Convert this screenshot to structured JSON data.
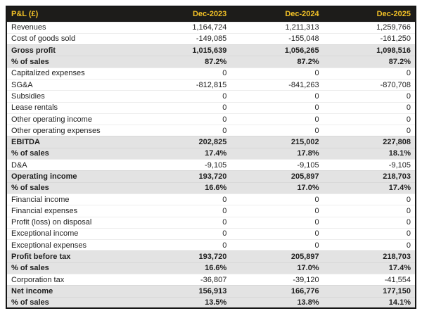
{
  "colors": {
    "page_bg": "#ffffff",
    "header_bg": "#1d1c1a",
    "header_text": "#f2c127",
    "emphasis_row_bg": "#e3e3e3",
    "table_border": "#161616",
    "body_text": "#1e1e1e"
  },
  "chart_data": {
    "type": "table",
    "title": "P&L (£)",
    "header": {
      "label": "P&L (£)",
      "columns": [
        "Dec-2023",
        "Dec-2024",
        "Dec-2025"
      ]
    },
    "rows": [
      {
        "label": "Revenues",
        "values": [
          "1,164,724",
          "1,211,313",
          "1,259,766"
        ],
        "emphasis": false
      },
      {
        "label": "Cost of goods sold",
        "values": [
          "-149,085",
          "-155,048",
          "-161,250"
        ],
        "emphasis": false
      },
      {
        "label": "Gross profit",
        "values": [
          "1,015,639",
          "1,056,265",
          "1,098,516"
        ],
        "emphasis": true
      },
      {
        "label": "% of sales",
        "values": [
          "87.2%",
          "87.2%",
          "87.2%"
        ],
        "emphasis": true
      },
      {
        "label": "Capitalized expenses",
        "values": [
          "0",
          "0",
          "0"
        ],
        "emphasis": false
      },
      {
        "label": "SG&A",
        "values": [
          "-812,815",
          "-841,263",
          "-870,708"
        ],
        "emphasis": false
      },
      {
        "label": "Subsidies",
        "values": [
          "0",
          "0",
          "0"
        ],
        "emphasis": false
      },
      {
        "label": "Lease rentals",
        "values": [
          "0",
          "0",
          "0"
        ],
        "emphasis": false
      },
      {
        "label": "Other operating income",
        "values": [
          "0",
          "0",
          "0"
        ],
        "emphasis": false
      },
      {
        "label": "Other operating expenses",
        "values": [
          "0",
          "0",
          "0"
        ],
        "emphasis": false
      },
      {
        "label": "EBITDA",
        "values": [
          "202,825",
          "215,002",
          "227,808"
        ],
        "emphasis": true
      },
      {
        "label": "% of sales",
        "values": [
          "17.4%",
          "17.8%",
          "18.1%"
        ],
        "emphasis": true
      },
      {
        "label": "D&A",
        "values": [
          "-9,105",
          "-9,105",
          "-9,105"
        ],
        "emphasis": false
      },
      {
        "label": "Operating income",
        "values": [
          "193,720",
          "205,897",
          "218,703"
        ],
        "emphasis": true
      },
      {
        "label": "% of sales",
        "values": [
          "16.6%",
          "17.0%",
          "17.4%"
        ],
        "emphasis": true
      },
      {
        "label": "Financial income",
        "values": [
          "0",
          "0",
          "0"
        ],
        "emphasis": false
      },
      {
        "label": "Financial expenses",
        "values": [
          "0",
          "0",
          "0"
        ],
        "emphasis": false
      },
      {
        "label": "Profit (loss) on disposal",
        "values": [
          "0",
          "0",
          "0"
        ],
        "emphasis": false
      },
      {
        "label": "Exceptional income",
        "values": [
          "0",
          "0",
          "0"
        ],
        "emphasis": false
      },
      {
        "label": "Exceptional expenses",
        "values": [
          "0",
          "0",
          "0"
        ],
        "emphasis": false
      },
      {
        "label": "Profit before tax",
        "values": [
          "193,720",
          "205,897",
          "218,703"
        ],
        "emphasis": true
      },
      {
        "label": "% of sales",
        "values": [
          "16.6%",
          "17.0%",
          "17.4%"
        ],
        "emphasis": true
      },
      {
        "label": "Corporation tax",
        "values": [
          "-36,807",
          "-39,120",
          "-41,554"
        ],
        "emphasis": false
      },
      {
        "label": "Net income",
        "values": [
          "156,913",
          "166,776",
          "177,150"
        ],
        "emphasis": true
      },
      {
        "label": "% of sales",
        "values": [
          "13.5%",
          "13.8%",
          "14.1%"
        ],
        "emphasis": true
      }
    ]
  }
}
